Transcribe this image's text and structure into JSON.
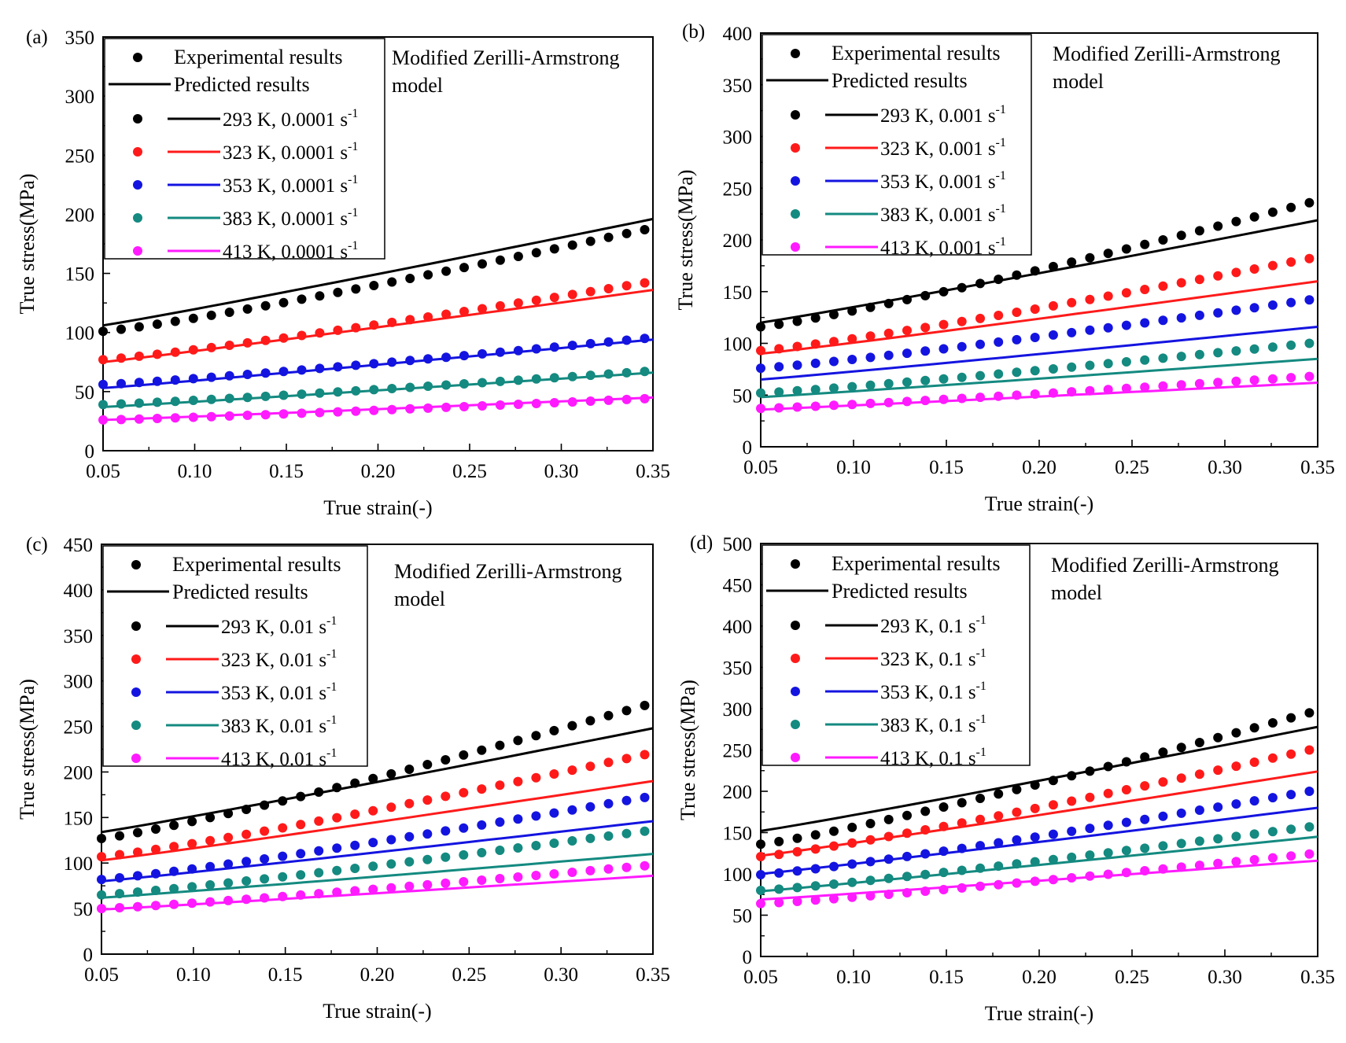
{
  "figure": {
    "colors": {
      "293 K": "#000000",
      "323 K": "#ff1a1a",
      "353 K": "#1414e0",
      "383 K": "#148a80",
      "413 K": "#ff1aff"
    },
    "legend_experimental": "Experimental results",
    "legend_predicted": "Predicted results",
    "model_label_line1": "Modified Zerilli-Armstrong",
    "model_label_line2": "model"
  },
  "chart_data": [
    {
      "type": "scatter+line",
      "panel": "(a)",
      "xlabel": "True strain(-)",
      "ylabel": "True stress(MPa)",
      "xlim": [
        0.05,
        0.35
      ],
      "ylim": [
        0,
        350
      ],
      "xticks": [
        "0.05",
        "0.10",
        "0.15",
        "0.20",
        "0.25",
        "0.30",
        "0.35"
      ],
      "yticks": [
        "0",
        "50",
        "100",
        "150",
        "200",
        "250",
        "300",
        "350"
      ],
      "strain_rate_label": "0.0001",
      "series": [
        {
          "name": "293 K, 0.0001 s-1",
          "temp": "293 K",
          "experimental": [
            101,
            187
          ],
          "predicted": [
            106,
            196
          ]
        },
        {
          "name": "323 K, 0.0001 s-1",
          "temp": "323 K",
          "experimental": [
            77,
            142
          ],
          "predicted": [
            75,
            136
          ]
        },
        {
          "name": "353 K, 0.0001 s-1",
          "temp": "353 K",
          "experimental": [
            56,
            95
          ],
          "predicted": [
            53,
            94
          ]
        },
        {
          "name": "383 K, 0.0001 s-1",
          "temp": "383 K",
          "experimental": [
            39,
            67
          ],
          "predicted": [
            37,
            66
          ]
        },
        {
          "name": "413 K, 0.0001 s-1",
          "temp": "413 K",
          "experimental": [
            26,
            44
          ],
          "predicted": [
            26,
            45
          ]
        }
      ]
    },
    {
      "type": "scatter+line",
      "panel": "(b)",
      "xlabel": "True strain(-)",
      "ylabel": "True stress(MPa)",
      "xlim": [
        0.05,
        0.35
      ],
      "ylim": [
        0,
        400
      ],
      "xticks": [
        "0.05",
        "0.10",
        "0.15",
        "0.20",
        "0.25",
        "0.30",
        "0.35"
      ],
      "yticks": [
        "0",
        "50",
        "100",
        "150",
        "200",
        "250",
        "300",
        "350",
        "400"
      ],
      "strain_rate_label": "0.001",
      "series": [
        {
          "name": "293 K, 0.001 s-1",
          "temp": "293 K",
          "experimental": [
            116,
            236
          ],
          "predicted": [
            120,
            219
          ]
        },
        {
          "name": "323 K, 0.001 s-1",
          "temp": "323 K",
          "experimental": [
            93,
            182
          ],
          "predicted": [
            90,
            160
          ]
        },
        {
          "name": "353 K, 0.001 s-1",
          "temp": "353 K",
          "experimental": [
            76,
            142
          ],
          "predicted": [
            65,
            116
          ]
        },
        {
          "name": "383 K, 0.001 s-1",
          "temp": "383 K",
          "experimental": [
            52,
            100
          ],
          "predicted": [
            48,
            85
          ]
        },
        {
          "name": "413 K, 0.001 s-1",
          "temp": "413 K",
          "experimental": [
            37,
            68
          ],
          "predicted": [
            36,
            62
          ]
        }
      ]
    },
    {
      "type": "scatter+line",
      "panel": "(c)",
      "xlabel": "True strain(-)",
      "ylabel": "True stress(MPa)",
      "xlim": [
        0.05,
        0.35
      ],
      "ylim": [
        0,
        450
      ],
      "xticks": [
        "0.05",
        "0.10",
        "0.15",
        "0.20",
        "0.25",
        "0.30",
        "0.35"
      ],
      "yticks": [
        "0",
        "50",
        "100",
        "150",
        "200",
        "250",
        "300",
        "350",
        "400",
        "450"
      ],
      "strain_rate_label": "0.01",
      "series": [
        {
          "name": "293 K, 0.01 s-1",
          "temp": "293 K",
          "experimental": [
            127,
            273
          ],
          "predicted": [
            134,
            248
          ]
        },
        {
          "name": "323 K, 0.01 s-1",
          "temp": "323 K",
          "experimental": [
            107,
            219
          ],
          "predicted": [
            103,
            190
          ]
        },
        {
          "name": "353 K, 0.01 s-1",
          "temp": "353 K",
          "experimental": [
            82,
            172
          ],
          "predicted": [
            80,
            146
          ]
        },
        {
          "name": "383 K, 0.01 s-1",
          "temp": "383 K",
          "experimental": [
            65,
            135
          ],
          "predicted": [
            62,
            110
          ]
        },
        {
          "name": "413 K, 0.01 s-1",
          "temp": "413 K",
          "experimental": [
            50,
            97
          ],
          "predicted": [
            49,
            86
          ]
        }
      ]
    },
    {
      "type": "scatter+line",
      "panel": "(d)",
      "xlabel": "True strain(-)",
      "ylabel": "True stress(MPa)",
      "xlim": [
        0.05,
        0.35
      ],
      "ylim": [
        0,
        500
      ],
      "xticks": [
        "0.05",
        "0.10",
        "0.15",
        "0.20",
        "0.25",
        "0.30",
        "0.35"
      ],
      "yticks": [
        "0",
        "50",
        "100",
        "150",
        "200",
        "250",
        "300",
        "350",
        "400",
        "450",
        "500"
      ],
      "strain_rate_label": "0.1",
      "series": [
        {
          "name": "293 K, 0.1 s-1",
          "temp": "293 K",
          "experimental": [
            136,
            295
          ],
          "predicted": [
            152,
            278
          ]
        },
        {
          "name": "323 K, 0.1 s-1",
          "temp": "323 K",
          "experimental": [
            121,
            250
          ],
          "predicted": [
            122,
            224
          ]
        },
        {
          "name": "353 K, 0.1 s-1",
          "temp": "353 K",
          "experimental": [
            99,
            200
          ],
          "predicted": [
            100,
            180
          ]
        },
        {
          "name": "383 K, 0.1 s-1",
          "temp": "383 K",
          "experimental": [
            80,
            157
          ],
          "predicted": [
            79,
            145
          ]
        },
        {
          "name": "413 K, 0.1 s-1",
          "temp": "413 K",
          "experimental": [
            64,
            124
          ],
          "predicted": [
            69,
            116
          ]
        }
      ]
    }
  ]
}
